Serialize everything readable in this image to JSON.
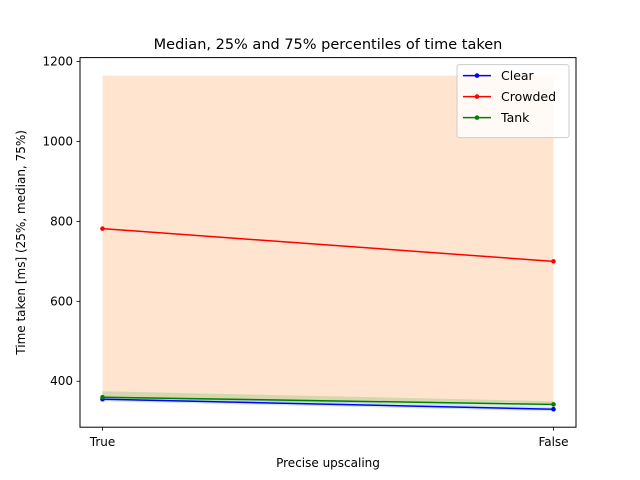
{
  "chart_data": {
    "type": "line",
    "title": "Median, 25% and 75% percentiles of time taken",
    "xlabel": "Precise upscaling",
    "ylabel": "Time taken [ms] (25%, median, 75%)",
    "categories": [
      "True",
      "False"
    ],
    "ylim": [
      285,
      1210
    ],
    "yticks": [
      400,
      600,
      800,
      1000,
      1200
    ],
    "yticks_labels": [
      "400",
      "600",
      "800",
      "1000",
      "1200"
    ],
    "grid": false,
    "legend_position": "top-right",
    "series": [
      {
        "name": "Clear",
        "color": "#0000ff",
        "median": [
          355,
          330
        ],
        "p25": [
          350,
          325
        ],
        "p75": [
          362,
          336
        ]
      },
      {
        "name": "Crowded",
        "color": "#ff0000",
        "median": [
          782,
          700
        ],
        "p25": [
          360,
          345
        ],
        "p75": [
          1165,
          1165
        ]
      },
      {
        "name": "Tank",
        "color": "#008000",
        "median": [
          360,
          342
        ],
        "p25": [
          355,
          338
        ],
        "p75": [
          375,
          350
        ]
      }
    ]
  }
}
